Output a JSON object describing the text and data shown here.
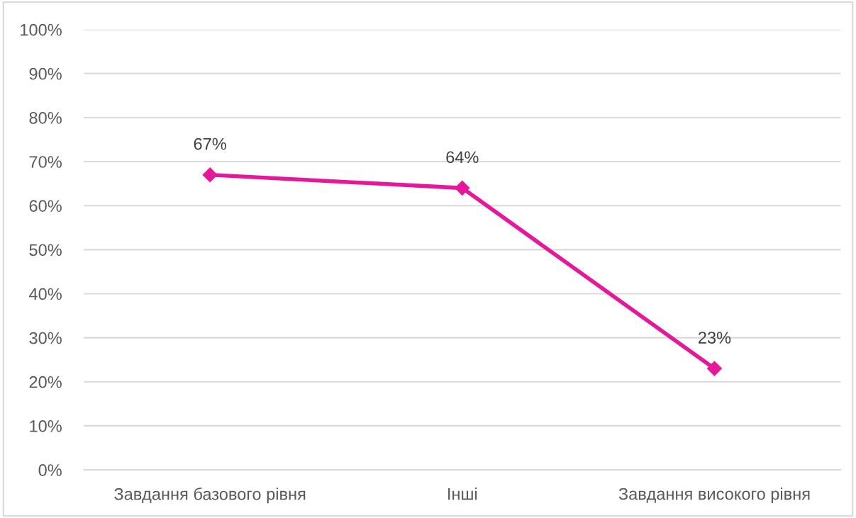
{
  "chart_data": {
    "type": "line",
    "categories": [
      "Завдання базового рівня",
      "Інші",
      "Завдання високого рівня"
    ],
    "series": [
      {
        "color": "#e5189b",
        "values": [
          67,
          64,
          23
        ],
        "value_labels": [
          "67%",
          "64%",
          "23%"
        ]
      }
    ],
    "ylim": [
      0,
      100
    ],
    "yticks": [
      {
        "value": 0,
        "label": "0%"
      },
      {
        "value": 10,
        "label": "10%"
      },
      {
        "value": 20,
        "label": "20%"
      },
      {
        "value": 30,
        "label": "30%"
      },
      {
        "value": 40,
        "label": "40%"
      },
      {
        "value": 50,
        "label": "50%"
      },
      {
        "value": 60,
        "label": "60%"
      },
      {
        "value": 70,
        "label": "70%"
      },
      {
        "value": 80,
        "label": "80%"
      },
      {
        "value": 90,
        "label": "90%"
      },
      {
        "value": 100,
        "label": "100%"
      }
    ],
    "grid": "y",
    "legend": false,
    "marker": "diamond",
    "line_style": "solid"
  }
}
